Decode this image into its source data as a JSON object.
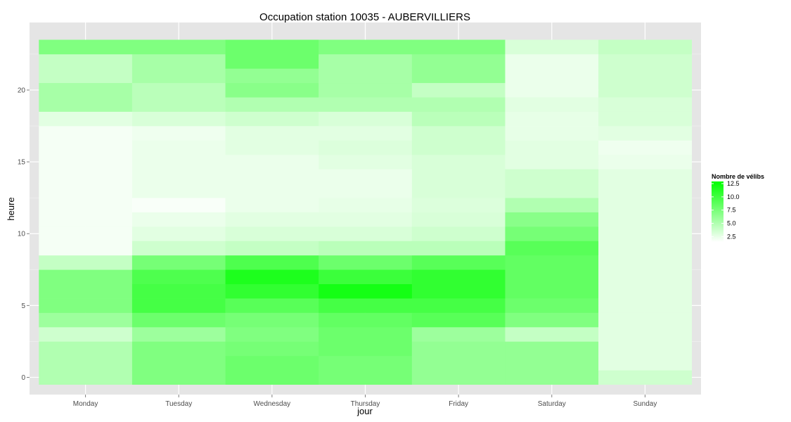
{
  "chart_data": {
    "type": "heatmap",
    "title": "Occupation station 10035 - AUBERVILLIERS",
    "xlabel": "jour",
    "ylabel": "heure",
    "x_categories": [
      "Monday",
      "Tuesday",
      "Wednesday",
      "Thursday",
      "Friday",
      "Saturday",
      "Sunday"
    ],
    "y_hours": [
      0,
      1,
      2,
      3,
      4,
      5,
      6,
      7,
      8,
      9,
      10,
      11,
      12,
      13,
      14,
      15,
      16,
      17,
      18,
      19,
      20,
      21,
      22,
      23
    ],
    "y_ticks": [
      0,
      5,
      10,
      15,
      20
    ],
    "y_tick_labels": [
      "0",
      "5",
      "10",
      "15",
      "20"
    ],
    "ylim": [
      -1.2,
      24.7
    ],
    "grid": true,
    "color_scale": {
      "low": "#ffffff",
      "high": "#00ff00",
      "min": 0,
      "max": 13
    },
    "values": {
      "Monday": [
        4.0,
        4.0,
        4.0,
        2.5,
        5.0,
        6.5,
        6.5,
        6.5,
        3.0,
        0.5,
        0.5,
        0.5,
        0.5,
        0.5,
        0.5,
        0.5,
        0.5,
        0.5,
        1.5,
        4.5,
        4.5,
        3.0,
        3.0,
        6.5
      ],
      "Tuesday": [
        6.5,
        6.5,
        6.5,
        5.0,
        7.5,
        9.5,
        9.5,
        9.0,
        7.0,
        2.5,
        1.5,
        1.0,
        0.3,
        1.0,
        1.0,
        1.0,
        1.0,
        0.8,
        2.0,
        3.5,
        3.5,
        4.5,
        4.5,
        6.5
      ],
      "Wednesday": [
        7.5,
        7.5,
        7.0,
        6.5,
        7.0,
        8.5,
        10.5,
        11.5,
        9.0,
        3.0,
        2.0,
        1.5,
        1.0,
        1.0,
        1.0,
        1.0,
        1.5,
        1.5,
        2.5,
        4.0,
        6.0,
        5.5,
        7.5,
        7.5
      ],
      "Thursday": [
        7.0,
        7.0,
        7.5,
        7.5,
        8.0,
        9.5,
        12.0,
        10.0,
        7.5,
        3.5,
        2.0,
        1.5,
        1.2,
        1.0,
        1.0,
        1.5,
        1.8,
        1.5,
        2.0,
        4.0,
        4.5,
        4.5,
        4.5,
        6.5
      ],
      "Friday": [
        5.5,
        5.5,
        5.5,
        5.0,
        8.5,
        9.5,
        10.5,
        10.5,
        8.5,
        3.5,
        2.5,
        2.0,
        1.8,
        2.0,
        2.0,
        2.0,
        2.5,
        2.5,
        3.5,
        4.0,
        3.0,
        5.5,
        5.5,
        6.5
      ],
      "Saturday": [
        5.5,
        5.5,
        5.5,
        3.0,
        6.5,
        7.5,
        8.0,
        8.0,
        8.0,
        8.5,
        7.0,
        6.0,
        4.0,
        2.5,
        2.5,
        1.5,
        1.5,
        1.2,
        1.2,
        1.5,
        1.0,
        1.0,
        1.0,
        2.0
      ],
      "Sunday": [
        2.5,
        1.5,
        1.5,
        1.5,
        1.5,
        1.5,
        1.5,
        1.5,
        1.5,
        1.5,
        1.5,
        1.5,
        1.5,
        1.5,
        1.5,
        1.0,
        0.8,
        1.5,
        2.0,
        2.0,
        2.5,
        2.5,
        2.5,
        3.0
      ]
    },
    "legend": {
      "title": "Nombre de vélibs",
      "position": "right",
      "breaks": [
        2.5,
        5.0,
        7.5,
        10.0,
        12.5
      ],
      "break_labels": [
        "2.5",
        "5.0",
        "7.5",
        "10.0",
        "12.5"
      ]
    }
  }
}
